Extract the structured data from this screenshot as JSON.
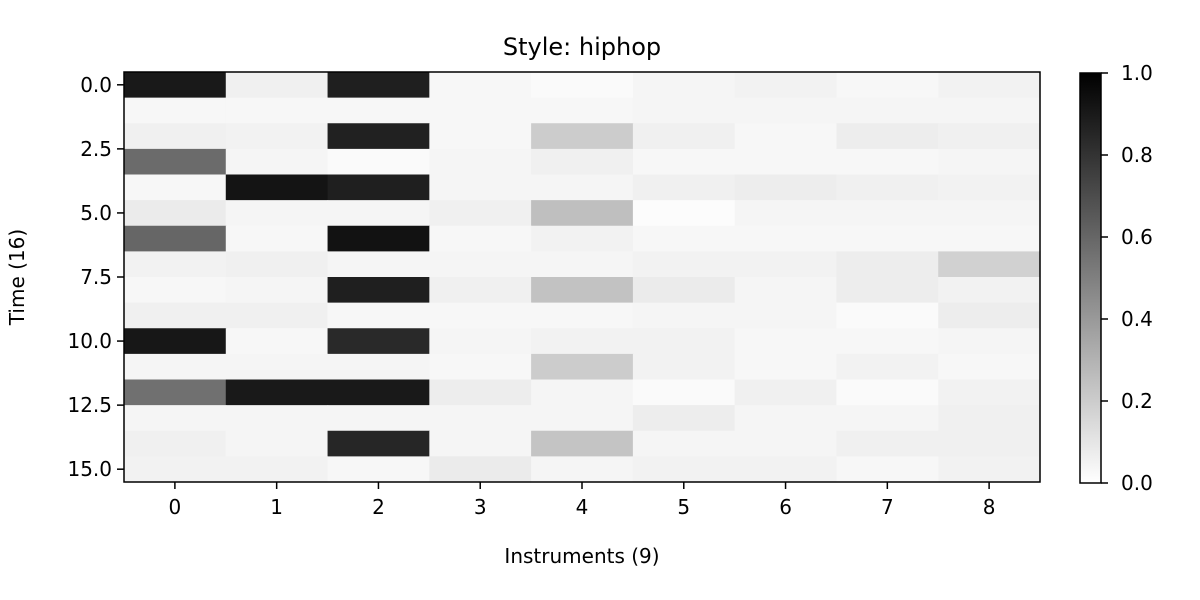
{
  "chart_data": {
    "type": "heatmap",
    "title": "Style: hiphop",
    "xlabel": "Instruments (9)",
    "ylabel": "Time (16)",
    "x_categories": [
      "0",
      "1",
      "2",
      "3",
      "4",
      "5",
      "6",
      "7",
      "8"
    ],
    "y_ticks": [
      0.0,
      2.5,
      5.0,
      7.5,
      10.0,
      12.5,
      15.0
    ],
    "y_tick_labels": [
      "0.0",
      "2.5",
      "5.0",
      "7.5",
      "10.0",
      "12.5",
      "15.0"
    ],
    "ylim": [
      -0.5,
      15.5
    ],
    "colormap": "gray_r",
    "vmin": 0.0,
    "vmax": 1.0,
    "colorbar_ticks": [
      "0.0",
      "0.2",
      "0.4",
      "0.6",
      "0.8",
      "1.0"
    ],
    "colorbar_tick_values": [
      0.0,
      0.2,
      0.4,
      0.6,
      0.8,
      1.0
    ],
    "values": [
      [
        0.9,
        0.06,
        0.88,
        0.03,
        0.02,
        0.04,
        0.05,
        0.03,
        0.05
      ],
      [
        0.03,
        0.03,
        0.03,
        0.03,
        0.03,
        0.04,
        0.04,
        0.04,
        0.04
      ],
      [
        0.06,
        0.05,
        0.87,
        0.03,
        0.2,
        0.06,
        0.03,
        0.07,
        0.06
      ],
      [
        0.58,
        0.04,
        0.02,
        0.04,
        0.06,
        0.03,
        0.03,
        0.03,
        0.04
      ],
      [
        0.03,
        0.92,
        0.88,
        0.04,
        0.04,
        0.06,
        0.07,
        0.06,
        0.05
      ],
      [
        0.08,
        0.04,
        0.04,
        0.06,
        0.25,
        0.01,
        0.04,
        0.04,
        0.04
      ],
      [
        0.6,
        0.03,
        0.93,
        0.03,
        0.05,
        0.03,
        0.03,
        0.03,
        0.03
      ],
      [
        0.05,
        0.06,
        0.04,
        0.04,
        0.04,
        0.05,
        0.05,
        0.07,
        0.18
      ],
      [
        0.03,
        0.04,
        0.88,
        0.06,
        0.24,
        0.08,
        0.04,
        0.07,
        0.05
      ],
      [
        0.06,
        0.06,
        0.03,
        0.03,
        0.03,
        0.04,
        0.04,
        0.02,
        0.07
      ],
      [
        0.91,
        0.03,
        0.84,
        0.04,
        0.05,
        0.05,
        0.03,
        0.03,
        0.04
      ],
      [
        0.04,
        0.04,
        0.04,
        0.03,
        0.2,
        0.05,
        0.03,
        0.05,
        0.03
      ],
      [
        0.56,
        0.9,
        0.9,
        0.07,
        0.04,
        0.02,
        0.06,
        0.02,
        0.05
      ],
      [
        0.04,
        0.04,
        0.04,
        0.04,
        0.04,
        0.07,
        0.04,
        0.04,
        0.06
      ],
      [
        0.06,
        0.04,
        0.85,
        0.04,
        0.23,
        0.04,
        0.04,
        0.06,
        0.06
      ],
      [
        0.05,
        0.05,
        0.03,
        0.08,
        0.04,
        0.05,
        0.05,
        0.03,
        0.05
      ]
    ]
  }
}
